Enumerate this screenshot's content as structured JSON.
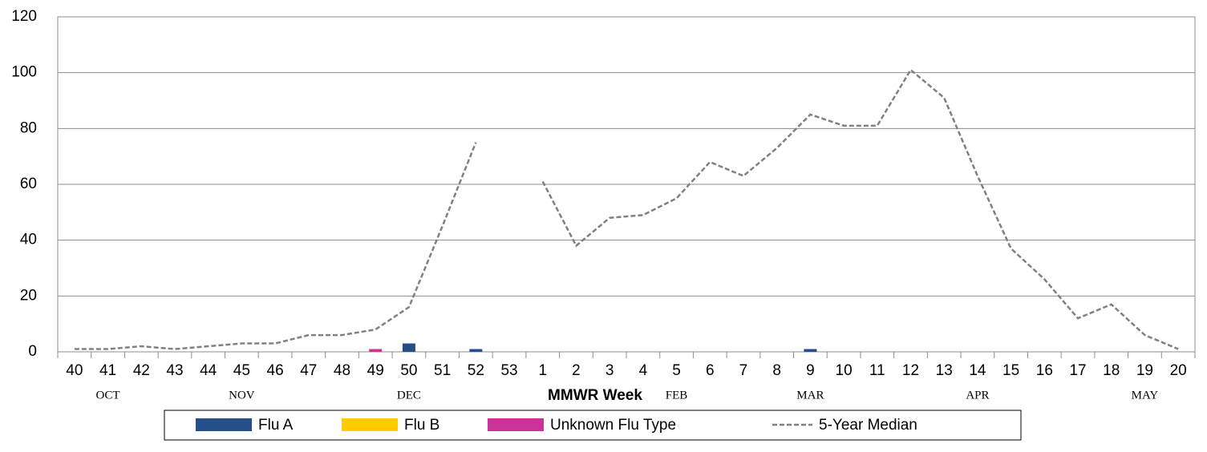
{
  "chart_data": {
    "type": "bar",
    "x_label": "MMWR Week",
    "categories": [
      "40",
      "41",
      "42",
      "43",
      "44",
      "45",
      "46",
      "47",
      "48",
      "49",
      "50",
      "51",
      "52",
      "53",
      "1",
      "2",
      "3",
      "4",
      "5",
      "6",
      "7",
      "8",
      "9",
      "10",
      "11",
      "12",
      "13",
      "14",
      "15",
      "16",
      "17",
      "18",
      "19",
      "20"
    ],
    "month_labels": [
      null,
      "OCT",
      null,
      null,
      null,
      "NOV",
      null,
      null,
      null,
      null,
      "DEC",
      null,
      null,
      null,
      null,
      null,
      null,
      null,
      "FEB",
      null,
      null,
      null,
      "MAR",
      null,
      null,
      null,
      null,
      "APR",
      null,
      null,
      null,
      null,
      "MAY",
      null
    ],
    "series": [
      {
        "name": "Flu A",
        "color": "#264f8a",
        "values": [
          0,
          0,
          0,
          0,
          0,
          0,
          0,
          0,
          0,
          0,
          3,
          0,
          1,
          0,
          0,
          0,
          0,
          0,
          0,
          0,
          0,
          0,
          1,
          0,
          0,
          0,
          0,
          0,
          0,
          0,
          0,
          0,
          0,
          0
        ]
      },
      {
        "name": "Flu B",
        "color": "#ffcc00",
        "values": [
          0,
          0,
          0,
          0,
          0,
          0,
          0,
          0,
          0,
          0,
          0,
          0,
          0,
          0,
          0,
          0,
          0,
          0,
          0,
          0,
          0,
          0,
          0,
          0,
          0,
          0,
          0,
          0,
          0,
          0,
          0,
          0,
          0,
          0
        ]
      },
      {
        "name": "Unknown Flu Type",
        "color": "#cc3399",
        "values": [
          0,
          0,
          0,
          0,
          0,
          0,
          0,
          0,
          0,
          1,
          0,
          0,
          0,
          0,
          0,
          0,
          0,
          0,
          0,
          0,
          0,
          0,
          0,
          0,
          0,
          0,
          0,
          0,
          0,
          0,
          0,
          0,
          0,
          0
        ]
      },
      {
        "name": "5-Year Median",
        "type": "line",
        "dashed": true,
        "color": "#808080",
        "values": [
          1,
          1,
          2,
          1,
          2,
          3,
          3,
          6,
          6,
          8,
          16,
          45,
          75,
          null,
          61,
          38,
          48,
          49,
          55,
          68,
          63,
          73,
          85,
          81,
          81,
          101,
          91,
          63,
          37,
          26,
          12,
          17,
          6,
          1
        ]
      }
    ],
    "ylim": [
      0,
      120
    ],
    "yticks": [
      0,
      20,
      40,
      60,
      80,
      100,
      120
    ],
    "grid": true
  }
}
